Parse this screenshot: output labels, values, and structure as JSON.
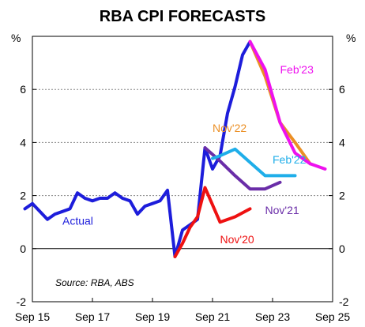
{
  "chart_data": {
    "type": "line",
    "title": "RBA CPI FORECASTS",
    "y_unit_left": "%",
    "y_unit_right": "%",
    "ylim": [
      -2,
      8
    ],
    "y_ticks": [
      -2,
      0,
      2,
      4,
      6
    ],
    "xlim": [
      "2015-09",
      "2025-09"
    ],
    "x_ticks": [
      {
        "label": "Sep 15",
        "date": "2015-09"
      },
      {
        "label": "Sep 17",
        "date": "2017-09"
      },
      {
        "label": "Sep 19",
        "date": "2019-09"
      },
      {
        "label": "Sep 21",
        "date": "2021-09"
      },
      {
        "label": "Sep 23",
        "date": "2023-09"
      },
      {
        "label": "Sep 25",
        "date": "2025-09"
      }
    ],
    "grid": {
      "horizontal_dotted": [
        2,
        4,
        6
      ],
      "zero_line": true
    },
    "source": "Source: RBA, ABS",
    "series": [
      {
        "name": "Actual",
        "color": "#1d1ddb",
        "points": [
          [
            "2015-06",
            1.5
          ],
          [
            "2015-09",
            1.7
          ],
          [
            "2015-12",
            1.4
          ],
          [
            "2016-03",
            1.1
          ],
          [
            "2016-06",
            1.3
          ],
          [
            "2016-09",
            1.4
          ],
          [
            "2016-12",
            1.5
          ],
          [
            "2017-03",
            2.1
          ],
          [
            "2017-06",
            1.9
          ],
          [
            "2017-09",
            1.8
          ],
          [
            "2017-12",
            1.9
          ],
          [
            "2018-03",
            1.9
          ],
          [
            "2018-06",
            2.1
          ],
          [
            "2018-09",
            1.9
          ],
          [
            "2018-12",
            1.8
          ],
          [
            "2019-03",
            1.3
          ],
          [
            "2019-06",
            1.6
          ],
          [
            "2019-09",
            1.7
          ],
          [
            "2019-12",
            1.8
          ],
          [
            "2020-03",
            2.2
          ],
          [
            "2020-06",
            -0.3
          ],
          [
            "2020-09",
            0.7
          ],
          [
            "2020-12",
            0.9
          ],
          [
            "2021-03",
            1.1
          ],
          [
            "2021-06",
            3.8
          ],
          [
            "2021-09",
            3.0
          ],
          [
            "2021-12",
            3.5
          ],
          [
            "2022-03",
            5.1
          ],
          [
            "2022-06",
            6.1
          ],
          [
            "2022-09",
            7.3
          ],
          [
            "2022-12",
            7.8
          ]
        ]
      },
      {
        "name": "Nov'20",
        "color": "#ee1111",
        "points": [
          [
            "2020-06",
            -0.3
          ],
          [
            "2020-09",
            0.2
          ],
          [
            "2020-12",
            0.8
          ],
          [
            "2021-03",
            1.2
          ],
          [
            "2021-06",
            2.3
          ],
          [
            "2021-12",
            1.0
          ],
          [
            "2022-06",
            1.2
          ],
          [
            "2022-12",
            1.5
          ]
        ]
      },
      {
        "name": "Nov'21",
        "color": "#6a2da8",
        "points": [
          [
            "2021-06",
            3.8
          ],
          [
            "2021-12",
            3.3
          ],
          [
            "2022-06",
            2.75
          ],
          [
            "2022-12",
            2.25
          ],
          [
            "2023-06",
            2.25
          ],
          [
            "2023-12",
            2.5
          ]
        ]
      },
      {
        "name": "Feb'22",
        "color": "#1faee9",
        "points": [
          [
            "2021-09",
            3.4
          ],
          [
            "2021-12",
            3.5
          ],
          [
            "2022-06",
            3.75
          ],
          [
            "2022-12",
            3.25
          ],
          [
            "2023-06",
            2.75
          ],
          [
            "2023-12",
            2.75
          ],
          [
            "2024-06",
            2.75
          ]
        ]
      },
      {
        "name": "Nov'22",
        "color": "#eb8f24",
        "points": [
          [
            "2022-12",
            7.8
          ],
          [
            "2023-06",
            6.5
          ],
          [
            "2023-12",
            4.75
          ],
          [
            "2024-06",
            4.0
          ],
          [
            "2024-12",
            3.2
          ]
        ]
      },
      {
        "name": "Feb'23",
        "color": "#ee11ee",
        "points": [
          [
            "2022-12",
            7.8
          ],
          [
            "2023-06",
            6.75
          ],
          [
            "2023-12",
            4.75
          ],
          [
            "2024-06",
            3.6
          ],
          [
            "2024-12",
            3.2
          ],
          [
            "2025-06",
            3.0
          ]
        ]
      }
    ]
  }
}
